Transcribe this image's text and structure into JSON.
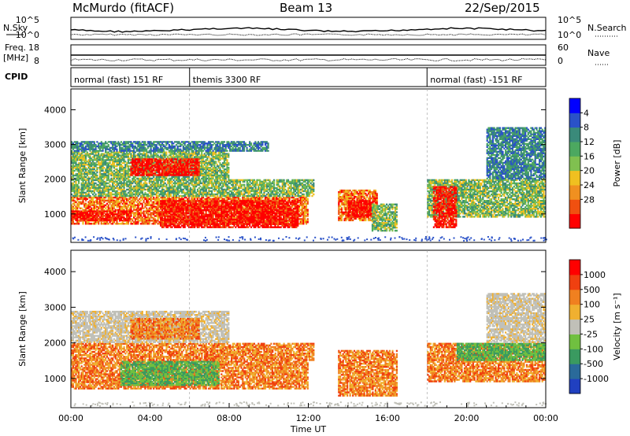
{
  "header": {
    "station": "McMurdo (fitACF)",
    "beam": "Beam 13",
    "date": "22/Sep/2015"
  },
  "top_panels": {
    "nsky_label": "N.Sky",
    "nsearch_label": "N.Search",
    "noise_ticks_left": [
      "10^5",
      "10^0"
    ],
    "noise_ticks_right": [
      "10^5",
      "10^0"
    ],
    "freq_label_1": "Freq.",
    "freq_label_2": "[MHz]",
    "freq_ticks": [
      "18",
      "8"
    ],
    "nave_label": "Nave",
    "nave_ticks": [
      "60",
      "0"
    ],
    "cpid_label": "CPID",
    "cpid_segments": [
      {
        "label": "normal (fast) 151 RF",
        "start_h": 0,
        "end_h": 6
      },
      {
        "label": "themis 3300 RF",
        "start_h": 6,
        "end_h": 18
      },
      {
        "label": "normal (fast) -151 RF",
        "start_h": 18,
        "end_h": 24
      }
    ]
  },
  "chart_data": [
    {
      "type": "heatmap",
      "name": "power",
      "ylabel": "Slant Range [km]",
      "ylim": [
        180,
        4600
      ],
      "yticks": [
        1000,
        2000,
        3000,
        4000
      ],
      "xlim_hours": [
        0,
        24
      ],
      "colorbar_label": "Power [dB]",
      "colorbar_ticks": [
        "4",
        "8",
        "12",
        "16",
        "20",
        "24",
        "28"
      ],
      "colorbar_colors": [
        "#0000ff",
        "#2a52c8",
        "#3a8a7a",
        "#4ca860",
        "#80c050",
        "#f0c020",
        "#f09020",
        "#f05010",
        "#ff0000"
      ],
      "regions": [
        {
          "t0": 0.0,
          "t1": 12.0,
          "r0": 700,
          "r1": 1500,
          "level": "high"
        },
        {
          "t0": 4.5,
          "t1": 11.5,
          "r0": 600,
          "r1": 1400,
          "level": "peak"
        },
        {
          "t0": 0.0,
          "t1": 3.0,
          "r0": 800,
          "r1": 1100,
          "level": "peak"
        },
        {
          "t0": 0.0,
          "t1": 12.3,
          "r0": 1500,
          "r1": 2000,
          "level": "mid"
        },
        {
          "t0": 0.0,
          "t1": 8.0,
          "r0": 2000,
          "r1": 2800,
          "level": "mid"
        },
        {
          "t0": 3.0,
          "t1": 6.5,
          "r0": 2100,
          "r1": 2600,
          "level": "peak"
        },
        {
          "t0": 0.0,
          "t1": 10.0,
          "r0": 2800,
          "r1": 3100,
          "level": "low"
        },
        {
          "t0": 13.5,
          "t1": 15.5,
          "r0": 800,
          "r1": 1700,
          "level": "high"
        },
        {
          "t0": 14.0,
          "t1": 15.2,
          "r0": 900,
          "r1": 1400,
          "level": "peak"
        },
        {
          "t0": 15.2,
          "t1": 16.5,
          "r0": 500,
          "r1": 1300,
          "level": "mid"
        },
        {
          "t0": 18.0,
          "t1": 24.0,
          "r0": 900,
          "r1": 2000,
          "level": "mid"
        },
        {
          "t0": 18.3,
          "t1": 19.5,
          "r0": 600,
          "r1": 1800,
          "level": "peak"
        },
        {
          "t0": 21.0,
          "t1": 24.0,
          "r0": 2000,
          "r1": 3500,
          "level": "low"
        }
      ]
    },
    {
      "type": "heatmap",
      "name": "velocity",
      "ylabel": "Slant Range [km]",
      "ylim": [
        180,
        4600
      ],
      "yticks": [
        1000,
        2000,
        3000,
        4000
      ],
      "xlim_hours": [
        0,
        24
      ],
      "xticks": [
        "00:00",
        "04:00",
        "08:00",
        "12:00",
        "16:00",
        "20:00",
        "00:00"
      ],
      "xlabel": "Time UT",
      "colorbar_label": "Velocity [m s⁻¹]",
      "colorbar_ticks": [
        "1000",
        "500",
        "100",
        "25",
        "-25",
        "-100",
        "-500",
        "-1000"
      ],
      "colorbar_colors": [
        "#2040c0",
        "#2a6a9a",
        "#3a9a60",
        "#70c040",
        "#c0c0b8",
        "#f0b030",
        "#f08020",
        "#f04010",
        "#ff0000"
      ],
      "regions": [
        {
          "t0": 0.0,
          "t1": 12.0,
          "r0": 700,
          "r1": 1500,
          "level": "orange"
        },
        {
          "t0": 2.5,
          "t1": 7.5,
          "r0": 800,
          "r1": 1500,
          "level": "green"
        },
        {
          "t0": 0.0,
          "t1": 12.3,
          "r0": 1500,
          "r1": 2000,
          "level": "orange"
        },
        {
          "t0": 0.0,
          "t1": 8.0,
          "r0": 2000,
          "r1": 2900,
          "level": "grey"
        },
        {
          "t0": 3.0,
          "t1": 6.5,
          "r0": 2100,
          "r1": 2700,
          "level": "orange"
        },
        {
          "t0": 13.5,
          "t1": 16.5,
          "r0": 500,
          "r1": 1800,
          "level": "orange"
        },
        {
          "t0": 18.0,
          "t1": 24.0,
          "r0": 900,
          "r1": 2000,
          "level": "orange"
        },
        {
          "t0": 19.5,
          "t1": 24.0,
          "r0": 1500,
          "r1": 2000,
          "level": "green"
        },
        {
          "t0": 21.0,
          "t1": 24.0,
          "r0": 2000,
          "r1": 3400,
          "level": "grey"
        }
      ]
    }
  ]
}
